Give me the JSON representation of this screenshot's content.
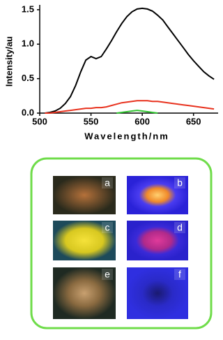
{
  "chart_data": {
    "type": "line",
    "xlabel": "Wavelength/nm",
    "ylabel": "Intensity/au",
    "x": [
      505,
      510,
      515,
      520,
      525,
      530,
      535,
      540,
      545,
      550,
      555,
      560,
      565,
      570,
      575,
      580,
      585,
      590,
      595,
      600,
      605,
      610,
      615,
      620,
      625,
      630,
      635,
      640,
      645,
      650,
      655,
      660,
      665,
      670
    ],
    "series": [
      {
        "color": "#000000",
        "values": [
          0,
          0.01,
          0.03,
          0.07,
          0.14,
          0.24,
          0.4,
          0.6,
          0.77,
          0.82,
          0.79,
          0.82,
          0.93,
          1.05,
          1.18,
          1.3,
          1.4,
          1.47,
          1.51,
          1.52,
          1.51,
          1.48,
          1.42,
          1.35,
          1.25,
          1.15,
          1.05,
          0.95,
          0.85,
          0.76,
          0.68,
          0.6,
          0.54,
          0.49
        ]
      },
      {
        "color": "#e8321e",
        "values": [
          0,
          0,
          0.01,
          0.02,
          0.03,
          0.04,
          0.05,
          0.06,
          0.07,
          0.07,
          0.08,
          0.08,
          0.09,
          0.11,
          0.13,
          0.15,
          0.16,
          0.17,
          0.18,
          0.18,
          0.18,
          0.17,
          0.17,
          0.16,
          0.15,
          0.14,
          0.13,
          0.12,
          0.11,
          0.1,
          0.09,
          0.08,
          0.07,
          0.06
        ]
      },
      {
        "color": "#2fc42f",
        "values": [
          null,
          null,
          null,
          null,
          null,
          null,
          null,
          null,
          null,
          null,
          null,
          null,
          null,
          null,
          0,
          0.01,
          0.02,
          0.03,
          0.04,
          0.03,
          0.02,
          0.01,
          0,
          null,
          null,
          null,
          null,
          null,
          null,
          null,
          null,
          null,
          null,
          null
        ]
      }
    ],
    "xlim": [
      500,
      674
    ],
    "xticks": [
      500,
      550,
      600,
      650
    ],
    "ylim": [
      0,
      1.57
    ],
    "yticks": [
      {
        "value": 0,
        "label": "0.0"
      },
      {
        "value": 0.5,
        "label": "0.5"
      },
      {
        "value": 1,
        "label": "1.0"
      },
      {
        "value": 1.5,
        "label": "1.5"
      }
    ]
  },
  "photo_panel": {
    "labels": [
      "a",
      "b",
      "c",
      "d",
      "e",
      "f"
    ]
  }
}
